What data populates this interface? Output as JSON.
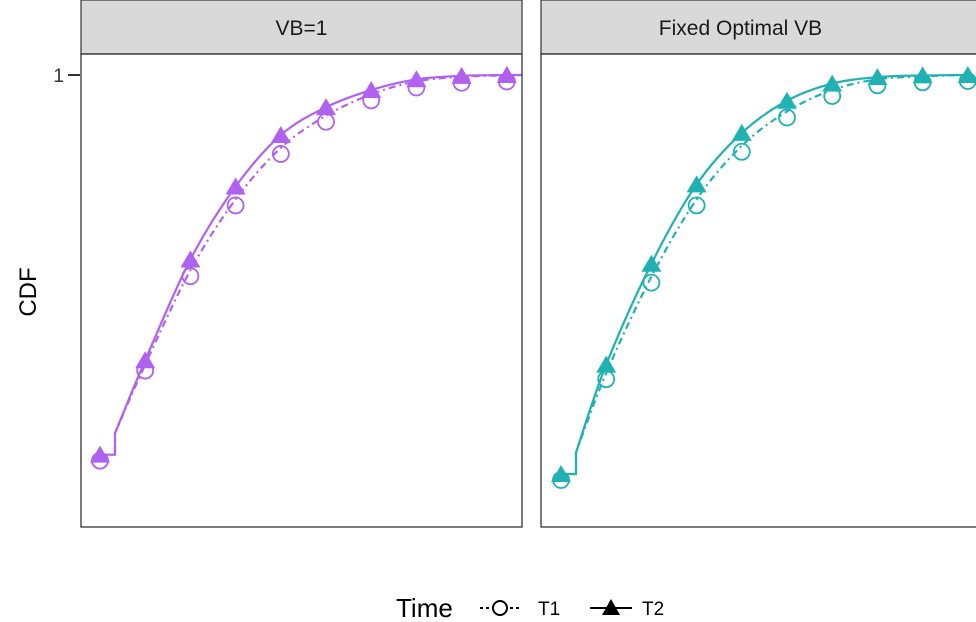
{
  "chart_data": {
    "type": "line",
    "ylabel": "CDF",
    "y_tick_labels": [
      "1"
    ],
    "ylim": [
      0,
      1
    ],
    "legend": {
      "title": "Time",
      "position": "bottom",
      "entries": [
        {
          "label": "T1",
          "shape": "open-circle",
          "linetype": "dashed"
        },
        {
          "label": "T2",
          "shape": "filled-triangle",
          "linetype": "solid"
        }
      ]
    },
    "panels": [
      {
        "strip": "VB=1",
        "color": "#b061f0",
        "x": [
          1,
          2,
          3,
          4,
          5,
          6,
          7,
          8,
          9,
          10,
          11
        ],
        "series": [
          {
            "name": "T1",
            "values": [
              0.115,
              0.325,
              0.545,
              0.71,
              0.83,
              0.905,
              0.955,
              0.985,
              0.996,
              0.999,
              1.0
            ]
          },
          {
            "name": "T2",
            "values": [
              0.115,
              0.335,
              0.57,
              0.74,
              0.86,
              0.925,
              0.965,
              0.99,
              0.998,
              1.0,
              1.0
            ]
          }
        ]
      },
      {
        "strip": "Fixed Optimal VB",
        "color": "#20b2b2",
        "x": [
          1,
          2,
          3,
          4,
          5,
          6,
          7,
          8,
          9,
          10
        ],
        "series": [
          {
            "name": "T1",
            "values": [
              0.07,
              0.305,
              0.53,
              0.71,
              0.835,
              0.915,
              0.965,
              0.99,
              0.997,
              1.0
            ]
          },
          {
            "name": "T2",
            "values": [
              0.07,
              0.325,
              0.56,
              0.745,
              0.865,
              0.94,
              0.98,
              0.995,
              0.999,
              1.0
            ]
          }
        ]
      }
    ]
  }
}
